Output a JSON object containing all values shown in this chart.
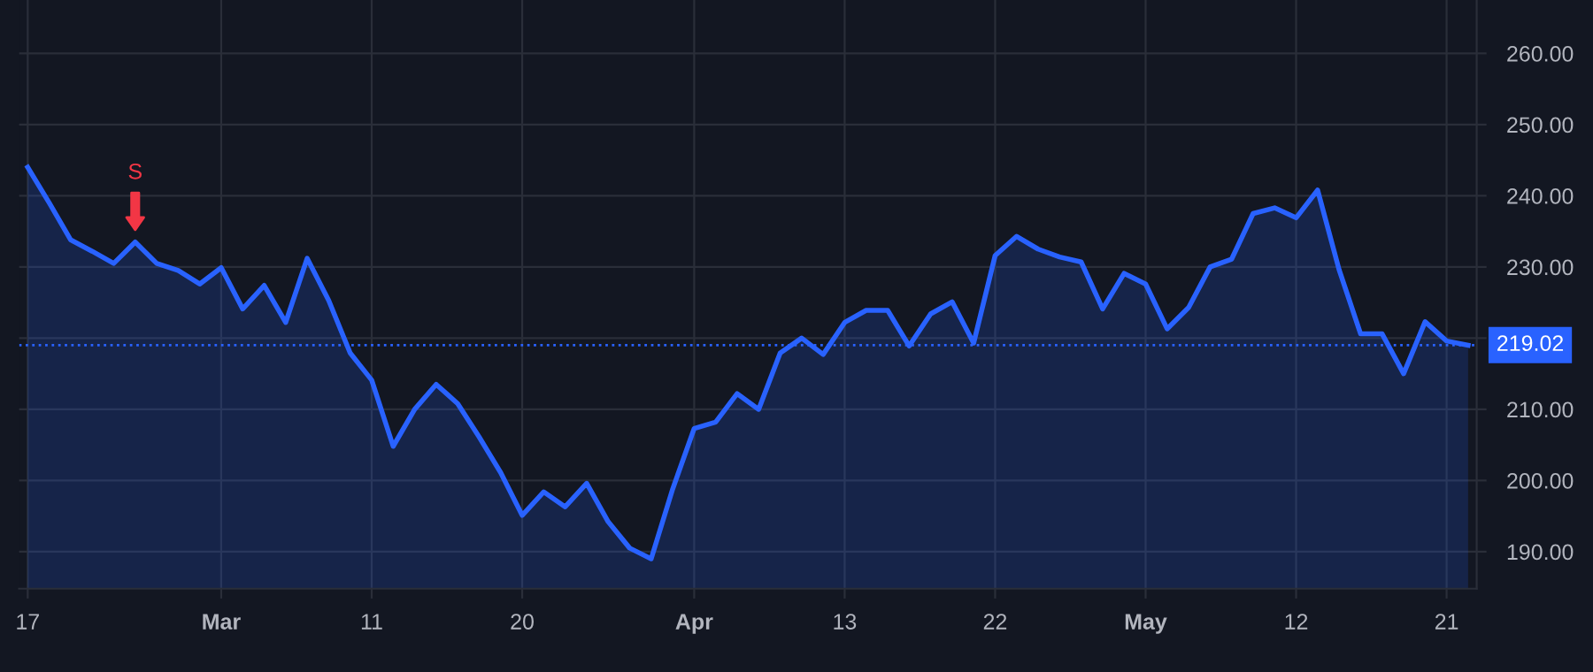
{
  "chart_data": {
    "type": "area",
    "categories": [
      "17",
      null,
      null,
      null,
      null,
      null,
      null,
      null,
      null,
      "Mar",
      null,
      null,
      null,
      null,
      null,
      null,
      "11",
      null,
      null,
      null,
      null,
      null,
      null,
      "20",
      null,
      null,
      null,
      null,
      null,
      null,
      null,
      "Apr",
      null,
      null,
      null,
      null,
      null,
      null,
      "13",
      null,
      null,
      null,
      null,
      null,
      null,
      "22",
      null,
      null,
      null,
      null,
      null,
      null,
      "May",
      null,
      null,
      null,
      null,
      null,
      null,
      "12",
      null,
      null,
      null,
      null,
      null,
      null,
      "21",
      null
    ],
    "series": [
      {
        "color": "#2962ff",
        "values": [
          244.0,
          239.0,
          233.8,
          232.2,
          230.5,
          233.5,
          230.5,
          229.5,
          227.6,
          229.9,
          224.1,
          227.4,
          222.2,
          231.2,
          225.3,
          217.9,
          214.1,
          204.8,
          210.0,
          213.5,
          210.8,
          206.1,
          201.1,
          195.1,
          198.4,
          196.3,
          199.6,
          194.2,
          190.5,
          189.0,
          198.8,
          207.3,
          208.2,
          212.2,
          210.0,
          217.9,
          220.0,
          217.7,
          222.2,
          223.9,
          223.9,
          218.9,
          223.4,
          225.1,
          219.3,
          231.6,
          234.3,
          232.5,
          231.4,
          230.7,
          224.1,
          229.1,
          227.6,
          221.3,
          224.3,
          230.0,
          231.1,
          237.5,
          238.3,
          236.9,
          240.8,
          229.6,
          220.6,
          220.6,
          215.0,
          222.3,
          219.6,
          219.0
        ]
      }
    ],
    "ylim": [
      184.8,
      267.5
    ],
    "yticks": [
      {
        "value": 190,
        "label": "190.00"
      },
      {
        "value": 200,
        "label": "200.00"
      },
      {
        "value": 210,
        "label": "210.00"
      },
      {
        "value": 220,
        "label": null
      },
      {
        "value": 230,
        "label": "230.00"
      },
      {
        "value": 240,
        "label": "240.00"
      },
      {
        "value": 250,
        "label": "250.00"
      },
      {
        "value": 260,
        "label": "260.00"
      }
    ],
    "ref_lines": [
      {
        "axis": "y",
        "value": 219.02,
        "label": "219.02",
        "color": "#2962ff",
        "line_style": "dotted"
      }
    ],
    "annotations": [
      {
        "text": "S",
        "y": 233.5
      }
    ],
    "grid": true
  }
}
